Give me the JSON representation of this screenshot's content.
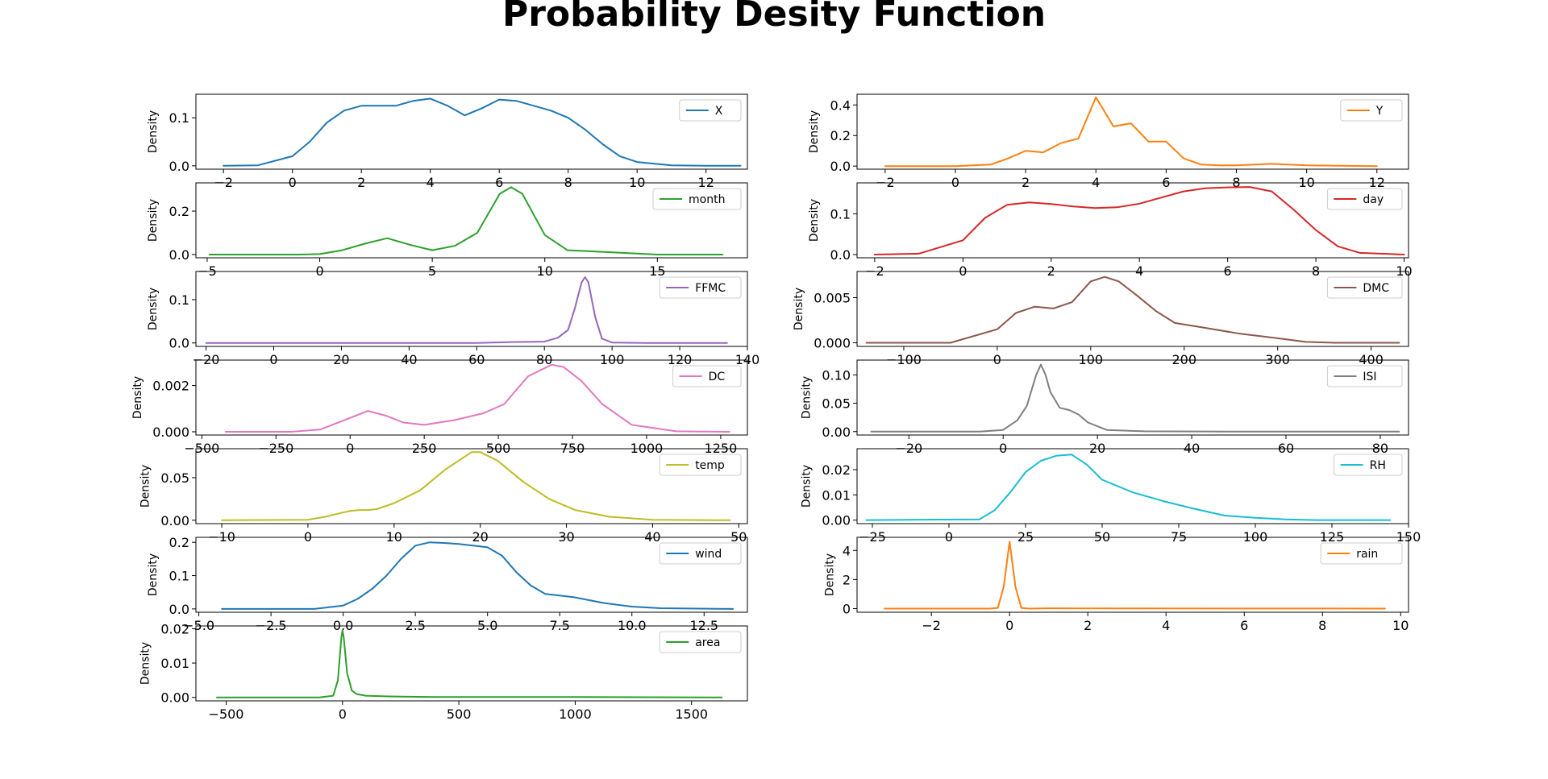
{
  "figure": {
    "title": "Probability Desity Function"
  },
  "chart_data": [
    {
      "type": "line",
      "legend": "X",
      "color": "#1f77b4",
      "ylabel": "Density",
      "xlim": [
        -2.8,
        13.2
      ],
      "ylim": [
        -0.007,
        0.149
      ],
      "xticks": [
        -2,
        0,
        2,
        4,
        6,
        8,
        10,
        12
      ],
      "xtick_labels": [
        "−2",
        "0",
        "2",
        "4",
        "6",
        "8",
        "10",
        "12"
      ],
      "yticks": [
        0.0,
        0.1
      ],
      "ytick_labels": [
        "0.0",
        "0.1"
      ],
      "x": [
        -2.0,
        -1.0,
        0.0,
        0.5,
        1.0,
        1.5,
        2.0,
        2.5,
        3.0,
        3.5,
        4.0,
        4.5,
        5.0,
        5.5,
        6.0,
        6.5,
        7.0,
        7.5,
        8.0,
        8.5,
        9.0,
        9.5,
        10.0,
        11.0,
        12.0,
        13.0
      ],
      "y": [
        0.0,
        0.001,
        0.02,
        0.05,
        0.09,
        0.115,
        0.125,
        0.125,
        0.125,
        0.135,
        0.14,
        0.125,
        0.105,
        0.12,
        0.138,
        0.135,
        0.125,
        0.115,
        0.1,
        0.075,
        0.045,
        0.02,
        0.008,
        0.001,
        0.0,
        0.0
      ]
    },
    {
      "type": "line",
      "legend": "Y",
      "color": "#ff7f0e",
      "ylabel": "Density",
      "xlim": [
        -2.8,
        12.9
      ],
      "ylim": [
        -0.02,
        0.47
      ],
      "xticks": [
        -2,
        0,
        2,
        4,
        6,
        8,
        10,
        12
      ],
      "xtick_labels": [
        "−2",
        "0",
        "2",
        "4",
        "6",
        "8",
        "10",
        "12"
      ],
      "yticks": [
        0.0,
        0.2,
        0.4
      ],
      "ytick_labels": [
        "0.0",
        "0.2",
        "0.4"
      ],
      "x": [
        -2.0,
        0.0,
        1.0,
        1.5,
        2.0,
        2.5,
        3.0,
        3.5,
        4.0,
        4.5,
        5.0,
        5.5,
        6.0,
        6.5,
        7.0,
        7.5,
        8.0,
        9.0,
        10.0,
        12.0
      ],
      "y": [
        0.0,
        0.0,
        0.01,
        0.05,
        0.1,
        0.09,
        0.15,
        0.18,
        0.45,
        0.26,
        0.28,
        0.16,
        0.16,
        0.05,
        0.01,
        0.005,
        0.005,
        0.015,
        0.005,
        0.0
      ]
    },
    {
      "type": "line",
      "legend": "month",
      "color": "#2ca02c",
      "ylabel": "Density",
      "xlim": [
        -5.5,
        19.0
      ],
      "ylim": [
        -0.015,
        0.33
      ],
      "xticks": [
        -5,
        0,
        5,
        10,
        15
      ],
      "xtick_labels": [
        "−5",
        "0",
        "5",
        "10",
        "15"
      ],
      "yticks": [
        0.0,
        0.2
      ],
      "ytick_labels": [
        "0.0",
        "0.2"
      ],
      "x": [
        -4.9,
        -1.0,
        0.0,
        1.0,
        2.0,
        3.0,
        4.0,
        5.0,
        6.0,
        7.0,
        8.0,
        8.5,
        9.0,
        10.0,
        11.0,
        12.0,
        13.0,
        15.0,
        17.9
      ],
      "y": [
        0.0,
        0.0,
        0.002,
        0.02,
        0.05,
        0.075,
        0.045,
        0.02,
        0.04,
        0.1,
        0.28,
        0.31,
        0.28,
        0.09,
        0.02,
        0.015,
        0.01,
        0.0,
        0.0
      ]
    },
    {
      "type": "line",
      "legend": "day",
      "color": "#d62728",
      "ylabel": "Density",
      "xlim": [
        -2.4,
        10.1
      ],
      "ylim": [
        -0.008,
        0.176
      ],
      "xticks": [
        -2,
        0,
        2,
        4,
        6,
        8,
        10
      ],
      "xtick_labels": [
        "−2",
        "0",
        "2",
        "4",
        "6",
        "8",
        "10"
      ],
      "yticks": [
        0.0,
        0.1
      ],
      "ytick_labels": [
        "0.0",
        "0.1"
      ],
      "x": [
        -2.0,
        -1.0,
        0.0,
        0.5,
        1.0,
        1.5,
        2.0,
        2.5,
        3.0,
        3.5,
        4.0,
        4.5,
        5.0,
        5.5,
        6.0,
        6.5,
        7.0,
        7.5,
        8.0,
        8.5,
        9.0,
        10.0
      ],
      "y": [
        0.0,
        0.002,
        0.035,
        0.09,
        0.122,
        0.128,
        0.124,
        0.118,
        0.114,
        0.116,
        0.125,
        0.14,
        0.155,
        0.163,
        0.165,
        0.166,
        0.155,
        0.11,
        0.06,
        0.02,
        0.004,
        0.0
      ]
    },
    {
      "type": "line",
      "legend": "FFMC",
      "color": "#9467bd",
      "ylabel": "Density",
      "xlim": [
        -23,
        140
      ],
      "ylim": [
        -0.008,
        0.165
      ],
      "xticks": [
        -20,
        0,
        20,
        40,
        60,
        80,
        100,
        120,
        140
      ],
      "xtick_labels": [
        "−20",
        "0",
        "20",
        "40",
        "60",
        "80",
        "100",
        "120",
        "140"
      ],
      "yticks": [
        0.0,
        0.1
      ],
      "ytick_labels": [
        "0.0",
        "0.1"
      ],
      "x": [
        -20,
        0,
        20,
        40,
        60,
        70,
        80,
        84,
        87,
        89,
        91,
        92,
        93,
        95,
        97,
        100,
        110,
        134
      ],
      "y": [
        0.0,
        0.0,
        0.0,
        0.0,
        0.0,
        0.002,
        0.003,
        0.012,
        0.03,
        0.08,
        0.14,
        0.152,
        0.14,
        0.06,
        0.01,
        0.001,
        0.0,
        0.0
      ]
    },
    {
      "type": "line",
      "legend": "DMC",
      "color": "#8c564b",
      "ylabel": "Density",
      "xlim": [
        -150,
        440
      ],
      "ylim": [
        -0.0004,
        0.0079
      ],
      "xticks": [
        -100,
        0,
        100,
        200,
        300,
        400
      ],
      "xtick_labels": [
        "−100",
        "0",
        "100",
        "200",
        "300",
        "400"
      ],
      "yticks": [
        0.0,
        0.005
      ],
      "ytick_labels": [
        "0.000",
        "0.005"
      ],
      "x": [
        -140,
        -50,
        0,
        20,
        40,
        60,
        80,
        100,
        115,
        130,
        150,
        170,
        190,
        220,
        260,
        300,
        330,
        360,
        430
      ],
      "y": [
        0.0,
        0.0,
        0.0015,
        0.0033,
        0.004,
        0.0038,
        0.0045,
        0.0068,
        0.0073,
        0.0068,
        0.0052,
        0.0035,
        0.0022,
        0.0017,
        0.001,
        0.0005,
        0.0001,
        0.0,
        0.0
      ]
    },
    {
      "type": "line",
      "legend": "DC",
      "color": "#e377c2",
      "ylabel": "Density",
      "xlim": [
        -520,
        1340
      ],
      "ylim": [
        -0.00014,
        0.0031
      ],
      "xticks": [
        -500,
        -250,
        0,
        250,
        500,
        750,
        1000,
        1250
      ],
      "xtick_labels": [
        "−500",
        "−250",
        "0",
        "250",
        "500",
        "750",
        "1000",
        "1250"
      ],
      "yticks": [
        0.0,
        0.002
      ],
      "ytick_labels": [
        "0.000",
        "0.002"
      ],
      "x": [
        -420,
        -200,
        -100,
        0,
        60,
        120,
        180,
        250,
        350,
        450,
        520,
        600,
        680,
        720,
        780,
        850,
        950,
        1100,
        1280
      ],
      "y": [
        0.0,
        0.0,
        0.0001,
        0.0006,
        0.0009,
        0.0007,
        0.0004,
        0.0003,
        0.0005,
        0.0008,
        0.0012,
        0.0024,
        0.0029,
        0.0028,
        0.0022,
        0.0012,
        0.0003,
        2e-05,
        0.0
      ]
    },
    {
      "type": "line",
      "legend": "ISI",
      "color": "#7f7f7f",
      "ylabel": "Density",
      "xlim": [
        -31,
        86
      ],
      "ylim": [
        -0.006,
        0.126
      ],
      "xticks": [
        -20,
        0,
        20,
        40,
        60,
        80
      ],
      "xtick_labels": [
        "−20",
        "0",
        "20",
        "40",
        "60",
        "80"
      ],
      "yticks": [
        0.0,
        0.05,
        0.1
      ],
      "ytick_labels": [
        "0.00",
        "0.05",
        "0.10"
      ],
      "x": [
        -28,
        -5,
        0,
        3,
        5,
        7,
        8,
        9,
        10,
        12,
        14,
        16,
        18,
        22,
        30,
        50,
        84
      ],
      "y": [
        0.0,
        0.0,
        0.003,
        0.02,
        0.045,
        0.1,
        0.118,
        0.1,
        0.07,
        0.042,
        0.038,
        0.03,
        0.016,
        0.003,
        0.0005,
        0.0,
        0.0
      ]
    },
    {
      "type": "line",
      "legend": "temp",
      "color": "#bcbd22",
      "ylabel": "Density",
      "xlim": [
        -13,
        51
      ],
      "ylim": [
        -0.004,
        0.084
      ],
      "xticks": [
        -10,
        0,
        10,
        20,
        30,
        40,
        50
      ],
      "xtick_labels": [
        "−10",
        "0",
        "10",
        "20",
        "30",
        "40",
        "50"
      ],
      "yticks": [
        0.0,
        0.05
      ],
      "ytick_labels": [
        "0.00",
        "0.05"
      ],
      "x": [
        -10,
        0,
        2,
        4,
        5,
        6,
        7,
        8,
        10,
        13,
        16,
        19,
        20,
        22,
        25,
        28,
        31,
        35,
        40,
        49
      ],
      "y": [
        0.0,
        0.0005,
        0.004,
        0.009,
        0.011,
        0.012,
        0.012,
        0.013,
        0.02,
        0.035,
        0.06,
        0.08,
        0.08,
        0.07,
        0.045,
        0.025,
        0.012,
        0.004,
        0.0005,
        0.0
      ]
    },
    {
      "type": "line",
      "legend": "RH",
      "color": "#17becf",
      "ylabel": "Density",
      "xlim": [
        -30,
        150
      ],
      "ylim": [
        -0.0014,
        0.0283
      ],
      "xticks": [
        -25,
        0,
        25,
        50,
        75,
        100,
        125,
        150
      ],
      "xtick_labels": [
        "−25",
        "0",
        "25",
        "50",
        "75",
        "100",
        "125",
        "150"
      ],
      "yticks": [
        0.0,
        0.01,
        0.02
      ],
      "ytick_labels": [
        "0.00",
        "0.01",
        "0.02"
      ],
      "x": [
        -27,
        10,
        15,
        20,
        25,
        30,
        35,
        40,
        45,
        50,
        60,
        70,
        80,
        90,
        100,
        110,
        120,
        144
      ],
      "y": [
        0.0,
        0.0003,
        0.004,
        0.011,
        0.019,
        0.0235,
        0.0255,
        0.026,
        0.022,
        0.016,
        0.011,
        0.0075,
        0.0045,
        0.0018,
        0.0009,
        0.0003,
        0.0,
        0.0
      ]
    },
    {
      "type": "line",
      "legend": "wind",
      "color": "#1f77b4",
      "ylabel": "Density",
      "xlim": [
        -5.1,
        14.0
      ],
      "ylim": [
        -0.01,
        0.215
      ],
      "xticks": [
        -5.0,
        -2.5,
        0.0,
        2.5,
        5.0,
        7.5,
        10.0,
        12.5
      ],
      "xtick_labels": [
        "−5.0",
        "−2.5",
        "0.0",
        "2.5",
        "5.0",
        "7.5",
        "10.0",
        "12.5"
      ],
      "yticks": [
        0.0,
        0.1,
        0.2
      ],
      "ytick_labels": [
        "0.0",
        "0.1",
        "0.2"
      ],
      "x": [
        -4.2,
        -1.0,
        0.0,
        0.5,
        1.0,
        1.5,
        2.0,
        2.5,
        3.0,
        3.5,
        4.0,
        4.5,
        5.0,
        5.5,
        6.0,
        6.5,
        7.0,
        7.5,
        8.0,
        9.0,
        10.0,
        11.0,
        13.5
      ],
      "y": [
        0.0,
        0.0,
        0.01,
        0.03,
        0.06,
        0.1,
        0.15,
        0.19,
        0.2,
        0.198,
        0.195,
        0.19,
        0.185,
        0.16,
        0.11,
        0.07,
        0.045,
        0.04,
        0.035,
        0.018,
        0.007,
        0.002,
        0.0
      ]
    },
    {
      "type": "line",
      "legend": "rain",
      "color": "#ff7f0e",
      "ylabel": "Density",
      "xlim": [
        -3.9,
        10.2
      ],
      "ylim": [
        -0.25,
        4.9
      ],
      "xticks": [
        -2,
        0,
        2,
        4,
        6,
        8,
        10
      ],
      "xtick_labels": [
        "−2",
        "0",
        "2",
        "4",
        "6",
        "8",
        "10"
      ],
      "yticks": [
        0,
        2,
        4
      ],
      "ytick_labels": [
        "0",
        "2",
        "4"
      ],
      "x": [
        -3.2,
        -0.5,
        -0.3,
        -0.15,
        0.0,
        0.15,
        0.3,
        0.5,
        1.0,
        9.6
      ],
      "y": [
        0.0,
        0.0,
        0.05,
        1.5,
        4.6,
        1.5,
        0.05,
        0.0,
        0.02,
        0.0
      ]
    },
    {
      "type": "line",
      "legend": "area",
      "color": "#2ca02c",
      "ylabel": "Density",
      "xlim": [
        -630,
        1740
      ],
      "ylim": [
        -0.001,
        0.0208
      ],
      "xticks": [
        -500,
        0,
        500,
        1000,
        1500
      ],
      "xtick_labels": [
        "−500",
        "0",
        "500",
        "1000",
        "1500"
      ],
      "yticks": [
        0.0,
        0.01,
        0.02
      ],
      "ytick_labels": [
        "0.00",
        "0.01",
        "0.02"
      ],
      "x": [
        -540,
        -100,
        -40,
        -20,
        -5,
        0,
        5,
        20,
        40,
        60,
        100,
        200,
        400,
        1000,
        1630
      ],
      "y": [
        0.0,
        0.0,
        0.0005,
        0.005,
        0.0175,
        0.0195,
        0.0175,
        0.007,
        0.002,
        0.001,
        0.0005,
        0.0003,
        0.0001,
        0.0001,
        0.0
      ]
    }
  ]
}
